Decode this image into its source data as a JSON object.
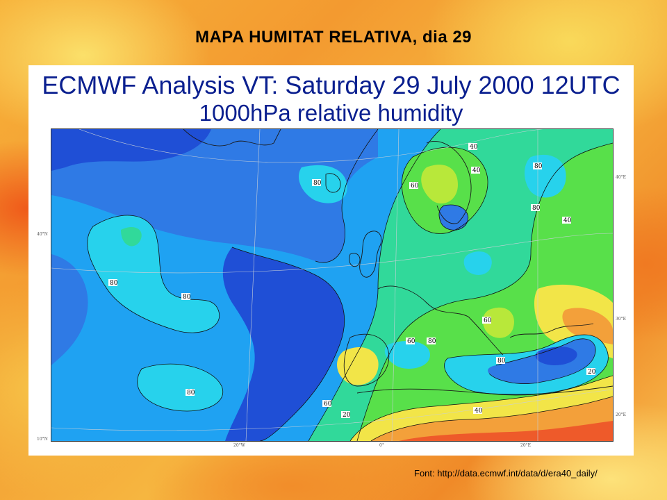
{
  "slide": {
    "title": "MAPA HUMITAT RELATIVA, dia 29",
    "credit": "Font: http://data.ecmwf.int/data/d/era40_daily/"
  },
  "map": {
    "heading_line1": "ECMWF  Analysis VT: Saturday 29 July 2000 12UTC",
    "heading_line2": "1000hPa  relative humidity",
    "contour_labels": [
      "80",
      "80",
      "80",
      "80",
      "80",
      "80",
      "80",
      "60",
      "60",
      "60",
      "40",
      "40",
      "40",
      "40",
      "20",
      "20",
      "80",
      "60"
    ],
    "edge_labels": {
      "left_top": "40°N",
      "left_bottom": "10°N",
      "bottom_1": "20°W",
      "bottom_2": "0°",
      "bottom_3": "20°E",
      "right_top": "40°E",
      "right_mid": "30°E",
      "right_bot": "20°E"
    },
    "colors": {
      "deep_blue": "#1f4fd6",
      "blue": "#2f7ae5",
      "light_blue": "#1fa2f2",
      "cyan": "#27d2ec",
      "aqua_green": "#31d99a",
      "green": "#58e04a",
      "yellow_green": "#b8e83a",
      "yellow": "#f2e548",
      "orange": "#f3a03a",
      "red_orange": "#ee5a2a"
    }
  }
}
